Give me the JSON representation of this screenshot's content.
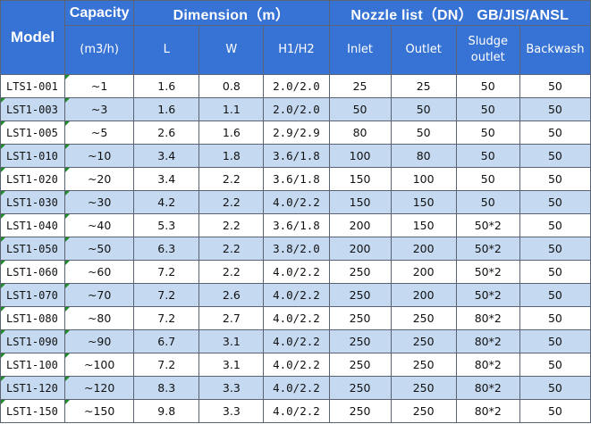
{
  "header": {
    "model": "Model",
    "capacity": "Capacity",
    "capacity_unit": "(m3/h)",
    "dimension": "Dimension（m）",
    "nozzle": "Nozzle list（DN） GB/JIS/ANSL",
    "col_L": "L",
    "col_W": "W",
    "col_H": "H1/H2",
    "col_inlet": "Inlet",
    "col_outlet": "Outlet",
    "col_sludge": "Sludge outlet",
    "col_backwash": "Backwash"
  },
  "colors": {
    "header_bg": "#3773d4",
    "header_text": "#ffffff",
    "row_alt_bg": "#c5d9f1",
    "grid_line": "#5b6475",
    "flag_marker": "#1f8c2a"
  },
  "rows": [
    {
      "model": "LTS1-001",
      "capacity": "~1",
      "L": "1.6",
      "W": "0.8",
      "H": "2.0/2.0",
      "inlet": "25",
      "outlet": "25",
      "sludge": "50",
      "backwash": "50"
    },
    {
      "model": "LST1-003",
      "capacity": "~3",
      "L": "1.6",
      "W": "1.1",
      "H": "2.0/2.0",
      "inlet": "50",
      "outlet": "50",
      "sludge": "50",
      "backwash": "50"
    },
    {
      "model": "LST1-005",
      "capacity": "~5",
      "L": "2.6",
      "W": "1.6",
      "H": "2.9/2.9",
      "inlet": "80",
      "outlet": "50",
      "sludge": "50",
      "backwash": "50"
    },
    {
      "model": "LST1-010",
      "capacity": "~10",
      "L": "3.4",
      "W": "1.8",
      "H": "3.6/1.8",
      "inlet": "100",
      "outlet": "80",
      "sludge": "50",
      "backwash": "50"
    },
    {
      "model": "LST1-020",
      "capacity": "~20",
      "L": "3.4",
      "W": "2.2",
      "H": "3.6/1.8",
      "inlet": "150",
      "outlet": "100",
      "sludge": "50",
      "backwash": "50"
    },
    {
      "model": "LST1-030",
      "capacity": "~30",
      "L": "4.2",
      "W": "2.2",
      "H": "4.0/2.2",
      "inlet": "150",
      "outlet": "150",
      "sludge": "50",
      "backwash": "50"
    },
    {
      "model": "LST1-040",
      "capacity": "~40",
      "L": "5.3",
      "W": "2.2",
      "H": "3.6/1.8",
      "inlet": "200",
      "outlet": "150",
      "sludge": "50*2",
      "backwash": "50"
    },
    {
      "model": "LST1-050",
      "capacity": "~50",
      "L": "6.3",
      "W": "2.2",
      "H": "3.8/2.0",
      "inlet": "200",
      "outlet": "200",
      "sludge": "50*2",
      "backwash": "50"
    },
    {
      "model": "LST1-060",
      "capacity": "~60",
      "L": "7.2",
      "W": "2.2",
      "H": "4.0/2.2",
      "inlet": "250",
      "outlet": "200",
      "sludge": "50*2",
      "backwash": "50"
    },
    {
      "model": "LST1-070",
      "capacity": "~70",
      "L": "7.2",
      "W": "2.6",
      "H": "4.0/2.2",
      "inlet": "250",
      "outlet": "200",
      "sludge": "50*2",
      "backwash": "50"
    },
    {
      "model": "LST1-080",
      "capacity": "~80",
      "L": "7.2",
      "W": "2.7",
      "H": "4.0/2.2",
      "inlet": "250",
      "outlet": "250",
      "sludge": "80*2",
      "backwash": "50"
    },
    {
      "model": "LST1-090",
      "capacity": "~90",
      "L": "6.7",
      "W": "3.1",
      "H": "4.0/2.2",
      "inlet": "250",
      "outlet": "250",
      "sludge": "80*2",
      "backwash": "50"
    },
    {
      "model": "LST1-100",
      "capacity": "~100",
      "L": "7.2",
      "W": "3.1",
      "H": "4.0/2.2",
      "inlet": "250",
      "outlet": "250",
      "sludge": "80*2",
      "backwash": "50"
    },
    {
      "model": "LST1-120",
      "capacity": "~120",
      "L": "8.3",
      "W": "3.3",
      "H": "4.0/2.2",
      "inlet": "250",
      "outlet": "250",
      "sludge": "80*2",
      "backwash": "50"
    },
    {
      "model": "LST1-150",
      "capacity": "~150",
      "L": "9.8",
      "W": "3.3",
      "H": "4.0/2.2",
      "inlet": "250",
      "outlet": "250",
      "sludge": "80*2",
      "backwash": "50"
    }
  ]
}
